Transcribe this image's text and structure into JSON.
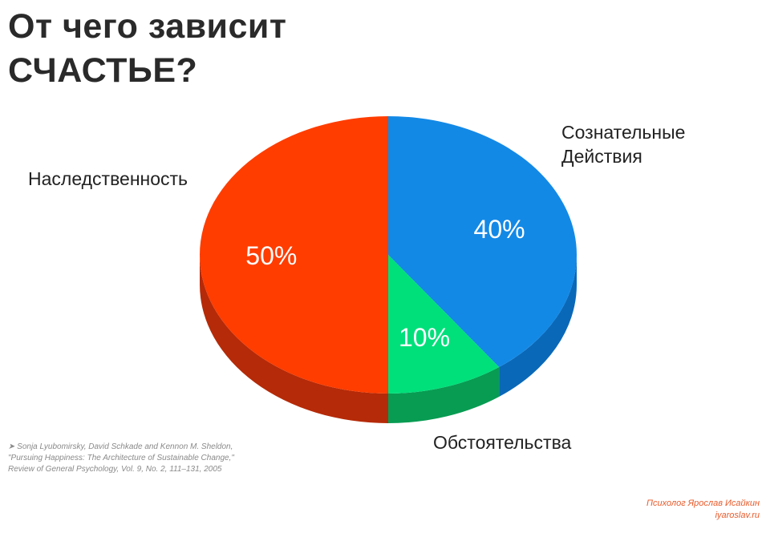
{
  "title": {
    "line1": "От чего зависит",
    "line2": "СЧАСТЬЕ?"
  },
  "chart_data": {
    "type": "pie",
    "title": "От чего зависит СЧАСТЬЕ?",
    "style": "3d",
    "categories": [
      "Сознательные Действия",
      "Обстоятельства",
      "Наследственность"
    ],
    "values": [
      40,
      10,
      50
    ],
    "value_labels": [
      "40%",
      "10%",
      "50%"
    ],
    "category_labels": [
      [
        "Сознательные",
        "Действия"
      ],
      [
        "Обстоятельства"
      ],
      [
        "Наследственность"
      ]
    ],
    "colors": [
      "#1389e6",
      "#00e07a",
      "#ff3d00"
    ],
    "side_colors": [
      "#0a68b8",
      "#079c52",
      "#b52a08"
    ]
  },
  "source": {
    "line1": "➤ Sonja Lyubomirsky, David Schkade and Kennon M. Sheldon,",
    "line2": "\"Pursuing Happiness: The Architecture of Sustainable Change,\"",
    "line3": "Review of General Psychology, Vol. 9, No. 2, 111–131, 2005"
  },
  "credit": {
    "line1": "Психолог Ярослав Исайкин",
    "line2": "iyaroslav.ru"
  }
}
